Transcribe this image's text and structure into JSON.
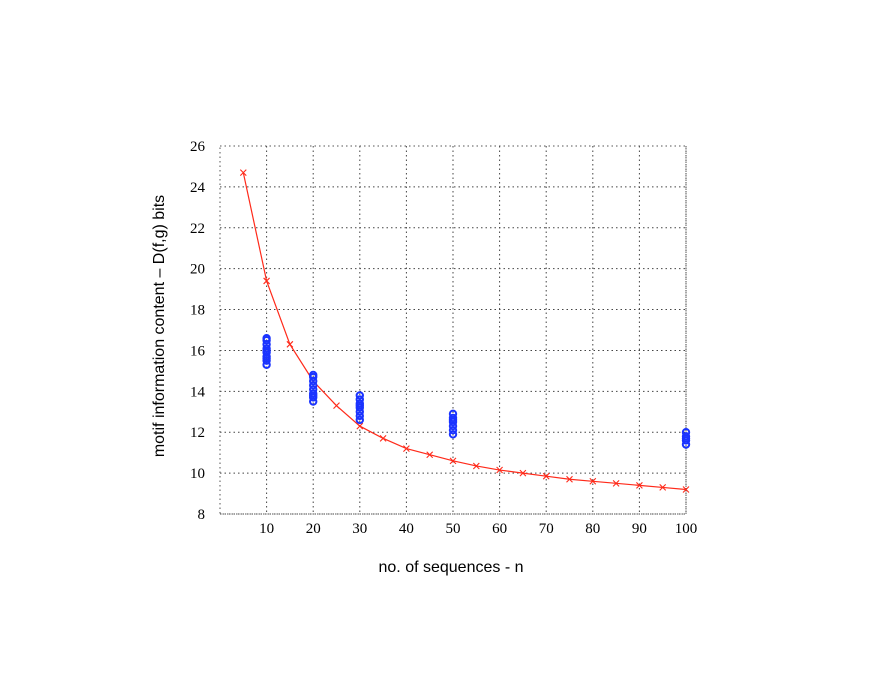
{
  "chart_data": {
    "type": "scatter",
    "title": "",
    "xlabel": "no. of sequences - n",
    "ylabel": "motif information content – D(f,g) bits",
    "xlim": [
      0,
      100
    ],
    "ylim": [
      8,
      26
    ],
    "xticks": [
      10,
      20,
      30,
      40,
      50,
      60,
      70,
      80,
      90,
      100
    ],
    "yticks": [
      8,
      10,
      12,
      14,
      16,
      18,
      20,
      22,
      24,
      26
    ],
    "grid": true,
    "legend": "none",
    "series": [
      {
        "kind": "line-x-markers",
        "color": "#ff2a1a",
        "x": [
          5,
          10,
          15,
          20,
          25,
          30,
          35,
          40,
          45,
          50,
          55,
          60,
          65,
          70,
          75,
          80,
          85,
          90,
          95,
          100
        ],
        "y": [
          24.7,
          19.4,
          16.3,
          14.5,
          13.3,
          12.3,
          11.7,
          11.2,
          10.9,
          10.6,
          10.35,
          10.15,
          10.0,
          9.85,
          9.7,
          9.6,
          9.5,
          9.4,
          9.3,
          9.2
        ]
      },
      {
        "kind": "circle-markers",
        "color": "#1a33ff",
        "x": [
          10,
          10,
          10,
          10,
          10,
          10,
          10,
          10,
          10,
          10,
          20,
          20,
          20,
          20,
          20,
          20,
          20,
          20,
          20,
          30,
          30,
          30,
          30,
          30,
          30,
          30,
          30,
          50,
          50,
          50,
          50,
          50,
          50,
          50,
          100,
          100,
          100,
          100,
          100
        ],
        "y": [
          16.5,
          16.3,
          16.1,
          15.9,
          15.7,
          15.5,
          15.3,
          16.6,
          15.6,
          16.0,
          14.7,
          14.5,
          14.3,
          14.1,
          13.9,
          13.7,
          13.5,
          14.8,
          13.8,
          13.8,
          13.6,
          13.4,
          13.2,
          13.0,
          12.8,
          12.6,
          13.3,
          12.9,
          12.7,
          12.5,
          12.3,
          12.1,
          11.9,
          12.6,
          12.0,
          11.8,
          11.6,
          11.4,
          11.7
        ]
      }
    ]
  }
}
